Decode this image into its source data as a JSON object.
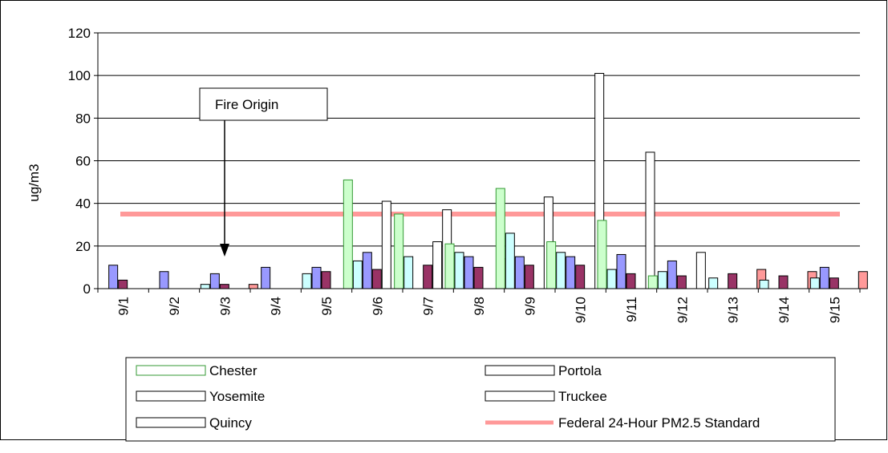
{
  "chart_data": {
    "type": "bar",
    "ylabel": "ug/m3",
    "xlabel": "",
    "title": "",
    "ylim": [
      0,
      120
    ],
    "yticks": [
      0,
      20,
      40,
      60,
      80,
      100,
      120
    ],
    "grid": true,
    "legend_position": "bottom",
    "categories": [
      "9/1",
      "9/2",
      "9/3",
      "9/4",
      "9/5",
      "9/6",
      "9/7",
      "9/8",
      "9/9",
      "9/10",
      "9/11",
      "9/12",
      "9/13",
      "9/14",
      "9/15"
    ],
    "series": [
      {
        "name": "Chester",
        "color": "#ccffcc",
        "stroke": "#339933",
        "values": [
          null,
          null,
          null,
          null,
          null,
          51,
          35,
          21,
          47,
          22,
          32,
          6,
          null,
          null,
          null
        ]
      },
      {
        "name": "Portola",
        "color": "#ccffff",
        "stroke": "#000000",
        "values": [
          null,
          null,
          2,
          null,
          7,
          13,
          15,
          17,
          26,
          17,
          9,
          8,
          5,
          4,
          5
        ]
      },
      {
        "name": "Yosemite",
        "color": "#9999ff",
        "stroke": "#000000",
        "values": [
          11,
          8,
          7,
          10,
          10,
          17,
          null,
          15,
          15,
          15,
          16,
          13,
          null,
          null,
          10
        ]
      },
      {
        "name": "Truckee",
        "color": "#993366",
        "stroke": "#000000",
        "values": [
          4,
          null,
          2,
          null,
          8,
          9,
          11,
          10,
          11,
          11,
          7,
          6,
          7,
          6,
          5
        ]
      },
      {
        "name": "Quincy",
        "color": "#ffffff",
        "stroke": "#000000",
        "values": [
          null,
          null,
          null,
          null,
          null,
          41,
          22,
          null,
          null,
          null,
          null,
          null,
          null,
          null,
          null
        ]
      },
      {
        "name": "",
        "color": "#ffffff",
        "stroke": "#000000",
        "values": [
          null,
          null,
          null,
          null,
          null,
          null,
          37,
          null,
          43,
          101,
          64,
          17,
          null,
          null,
          null
        ]
      },
      {
        "name": "",
        "color": "#ff9999",
        "stroke": "#000000",
        "values": [
          null,
          null,
          2,
          null,
          null,
          null,
          null,
          14,
          null,
          null,
          null,
          null,
          9,
          8,
          8
        ]
      }
    ],
    "standard_line": {
      "name": "Federal 24-Hour PM2.5 Standard",
      "value": 35,
      "color": "#ff9999"
    },
    "annotation": {
      "text": "Fire Origin",
      "category": "9/3"
    }
  },
  "legend": {
    "items": [
      {
        "label": "Chester",
        "stroke": "#339933",
        "fill": "#ffffff",
        "kind": "box"
      },
      {
        "label": "Portola",
        "stroke": "#000000",
        "fill": "#ffffff",
        "kind": "box"
      },
      {
        "label": "Yosemite",
        "stroke": "#000000",
        "fill": "#ffffff",
        "kind": "box"
      },
      {
        "label": "Truckee",
        "stroke": "#000000",
        "fill": "#ffffff",
        "kind": "box"
      },
      {
        "label": "Quincy",
        "stroke": "#000000",
        "fill": "#ffffff",
        "kind": "box"
      },
      {
        "label": "Federal 24-Hour PM2.5 Standard",
        "stroke": "#ff9999",
        "fill": "#ff9999",
        "kind": "line"
      }
    ]
  }
}
